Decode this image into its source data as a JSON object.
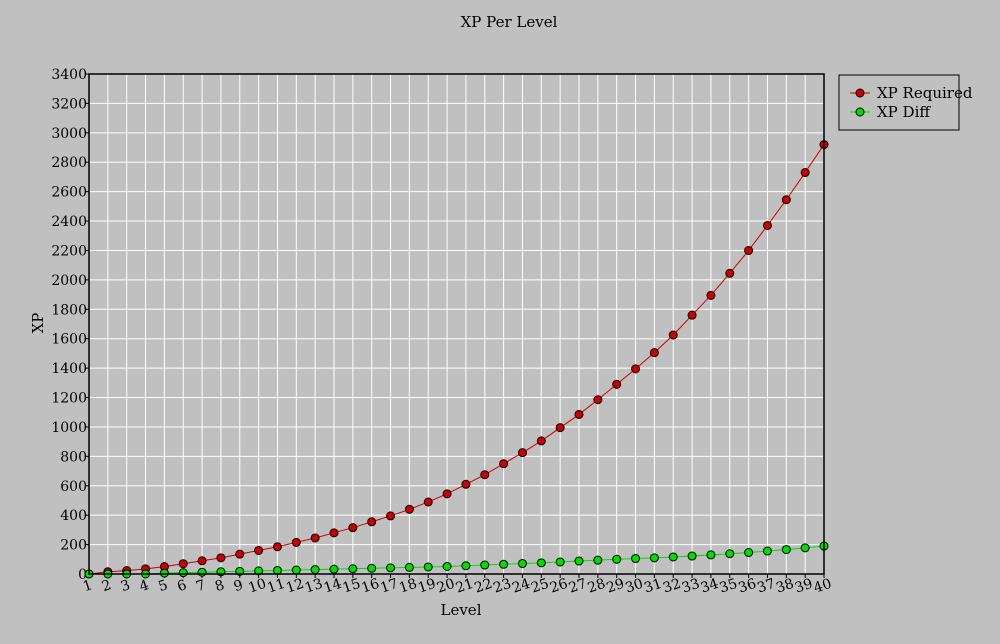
{
  "chart_data": {
    "type": "line",
    "title": "XP Per Level",
    "xlabel": "Level",
    "ylabel": "XP",
    "xlim": [
      1,
      40
    ],
    "ylim": [
      0,
      3400
    ],
    "ytick_step": 200,
    "grid": true,
    "legend_position": "top-right-outside",
    "colors": {
      "background": "#c0c0c0",
      "grid": "#ffffff",
      "axis": "#000000"
    },
    "x": [
      1,
      2,
      3,
      4,
      5,
      6,
      7,
      8,
      9,
      10,
      11,
      12,
      13,
      14,
      15,
      16,
      17,
      18,
      19,
      20,
      21,
      22,
      23,
      24,
      25,
      26,
      27,
      28,
      29,
      30,
      31,
      32,
      33,
      34,
      35,
      36,
      37,
      38,
      39,
      40
    ],
    "series": [
      {
        "name": "XP Required",
        "color": "#cc0000",
        "marker": "circle",
        "values": [
          0,
          15,
          23,
          35,
          50,
          70,
          90,
          110,
          135,
          160,
          185,
          215,
          245,
          280,
          315,
          355,
          395,
          440,
          490,
          545,
          610,
          675,
          750,
          825,
          905,
          995,
          1085,
          1185,
          1290,
          1395,
          1505,
          1625,
          1760,
          1895,
          2045,
          2200,
          2370,
          2545,
          2730,
          2920
        ]
      },
      {
        "name": "XP Diff",
        "color": "#00dd00",
        "marker": "circle",
        "values": [
          0,
          0,
          0,
          0,
          6,
          9,
          12,
          15,
          18,
          21,
          24,
          27,
          30,
          33,
          36,
          39,
          42,
          45,
          48,
          51,
          56,
          61,
          66,
          71,
          76,
          82,
          88,
          94,
          100,
          105,
          110,
          116,
          122,
          130,
          138,
          146,
          156,
          166,
          178,
          190
        ]
      }
    ]
  }
}
